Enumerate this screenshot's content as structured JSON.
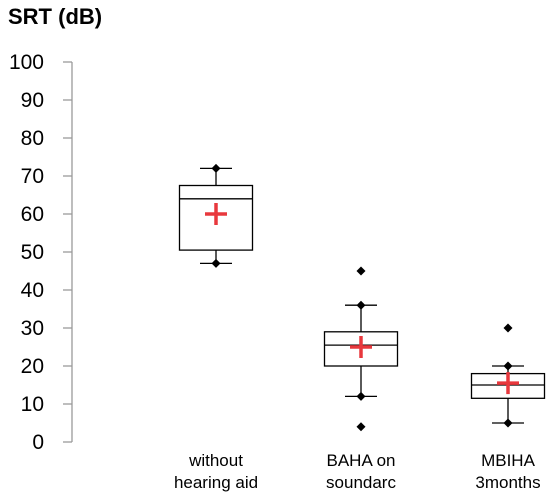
{
  "chart_data": {
    "type": "boxplot",
    "title": "",
    "ylabel": "SRT (dB)",
    "xlabel": "",
    "ylim": [
      0,
      100
    ],
    "yticks": [
      0,
      10,
      20,
      30,
      40,
      50,
      60,
      70,
      80,
      90,
      100
    ],
    "grid": false,
    "colors": {
      "box": "#000000",
      "mean_marker": "#e8383d",
      "outlier": "#000000"
    },
    "categories": [
      {
        "lines": [
          "without",
          "hearing aid"
        ]
      },
      {
        "lines": [
          "BAHA on",
          "soundarc"
        ]
      },
      {
        "lines": [
          "MBIHA",
          "3months"
        ]
      }
    ],
    "boxes": [
      {
        "min": 47,
        "q1": 50.5,
        "median": 64,
        "q3": 67.5,
        "max": 72,
        "mean": 60,
        "outliers": []
      },
      {
        "min": 12,
        "q1": 20,
        "median": 25.5,
        "q3": 29,
        "max": 36,
        "mean": 25,
        "outliers": [
          45,
          4
        ]
      },
      {
        "min": 5,
        "q1": 11.5,
        "median": 15,
        "q3": 18,
        "max": 20,
        "mean": 15.5,
        "outliers": [
          30
        ]
      }
    ]
  }
}
